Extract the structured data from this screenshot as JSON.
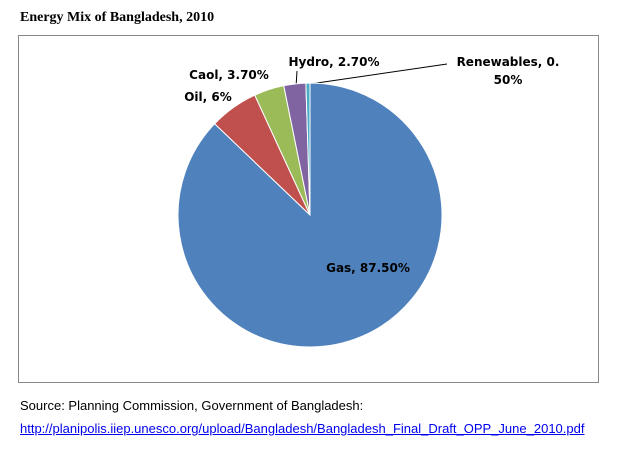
{
  "title": "Energy Mix of Bangladesh, 2010",
  "chart_data": {
    "type": "pie",
    "categories": [
      "Gas",
      "Oil",
      "Caol",
      "Hydro",
      "Renewables"
    ],
    "values": [
      87.5,
      6,
      3.7,
      2.7,
      0.5
    ],
    "value_labels": [
      "Gas, 87.50%",
      "Oil, 6%",
      "Caol, 3.70%",
      "Hydro, 2.70%",
      "Renewables, 0. 50%"
    ],
    "colors": [
      "#4f81bd",
      "#c0504d",
      "#9bbb59",
      "#8064a2",
      "#4bacc6"
    ]
  },
  "source": "Source: Planning Commission, Government of Bangladesh:",
  "link": "http://planipolis.iiep.unesco.org/upload/Bangladesh/Bangladesh_Final_Draft_OPP_June_2010.pdf"
}
